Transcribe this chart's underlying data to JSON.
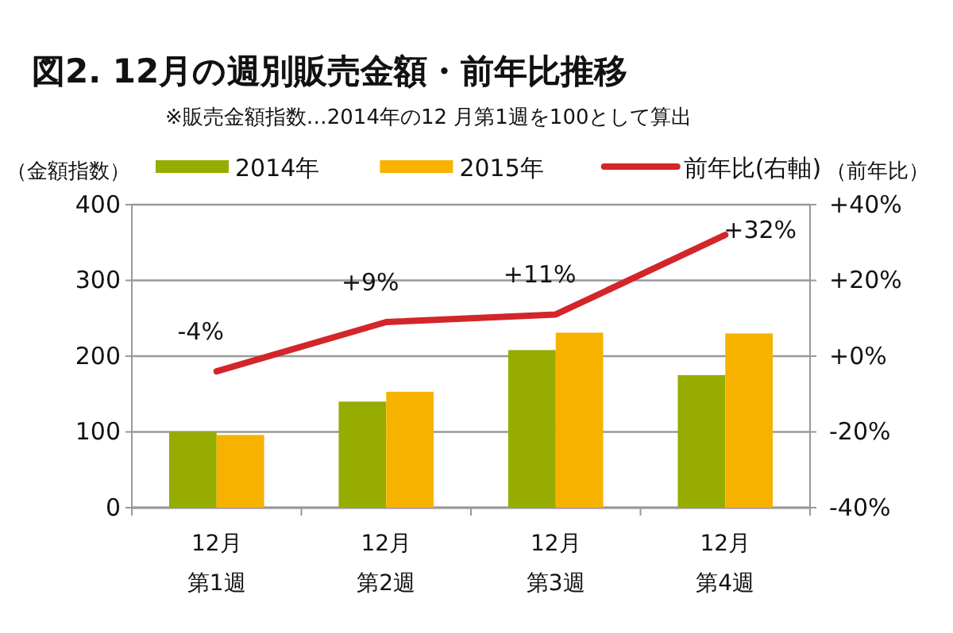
{
  "chart_data": {
    "type": "bar",
    "title": "図2.  12月の週別販売金額・前年比推移",
    "subtitle": "※販売金額指数…2014年の12 月第1週を100として算出",
    "ylabel": "（金額指数）",
    "y2label": "（前年比）",
    "categories": [
      "12月第1週",
      "12月第2週",
      "12月第3週",
      "12月第4週"
    ],
    "series": [
      {
        "name": "2014年",
        "color": "#96ac00",
        "values": [
          100,
          140,
          208,
          175
        ]
      },
      {
        "name": "2015年",
        "color": "#f7b200",
        "values": [
          96,
          153,
          231,
          230
        ]
      },
      {
        "name": "前年比(右軸)",
        "type": "line",
        "axis": "y2",
        "color": "#d3262a",
        "values": [
          -4,
          9,
          11,
          32
        ],
        "value_labels": [
          "-4%",
          "+9%",
          "+11%",
          "+32%"
        ]
      }
    ],
    "ylim": [
      0,
      400
    ],
    "yticks": [
      0,
      100,
      200,
      300,
      400
    ],
    "y2lim": [
      -40,
      40
    ],
    "y2ticks": [
      {
        "value": -40,
        "label": "-40%"
      },
      {
        "value": -20,
        "label": "-20%"
      },
      {
        "value": 0,
        "label": "+0%"
      },
      {
        "value": 20,
        "label": "+20%"
      },
      {
        "value": 40,
        "label": "+40%"
      }
    ],
    "grid": "y",
    "legend": "top",
    "marker": "none",
    "line_style": "solid"
  }
}
